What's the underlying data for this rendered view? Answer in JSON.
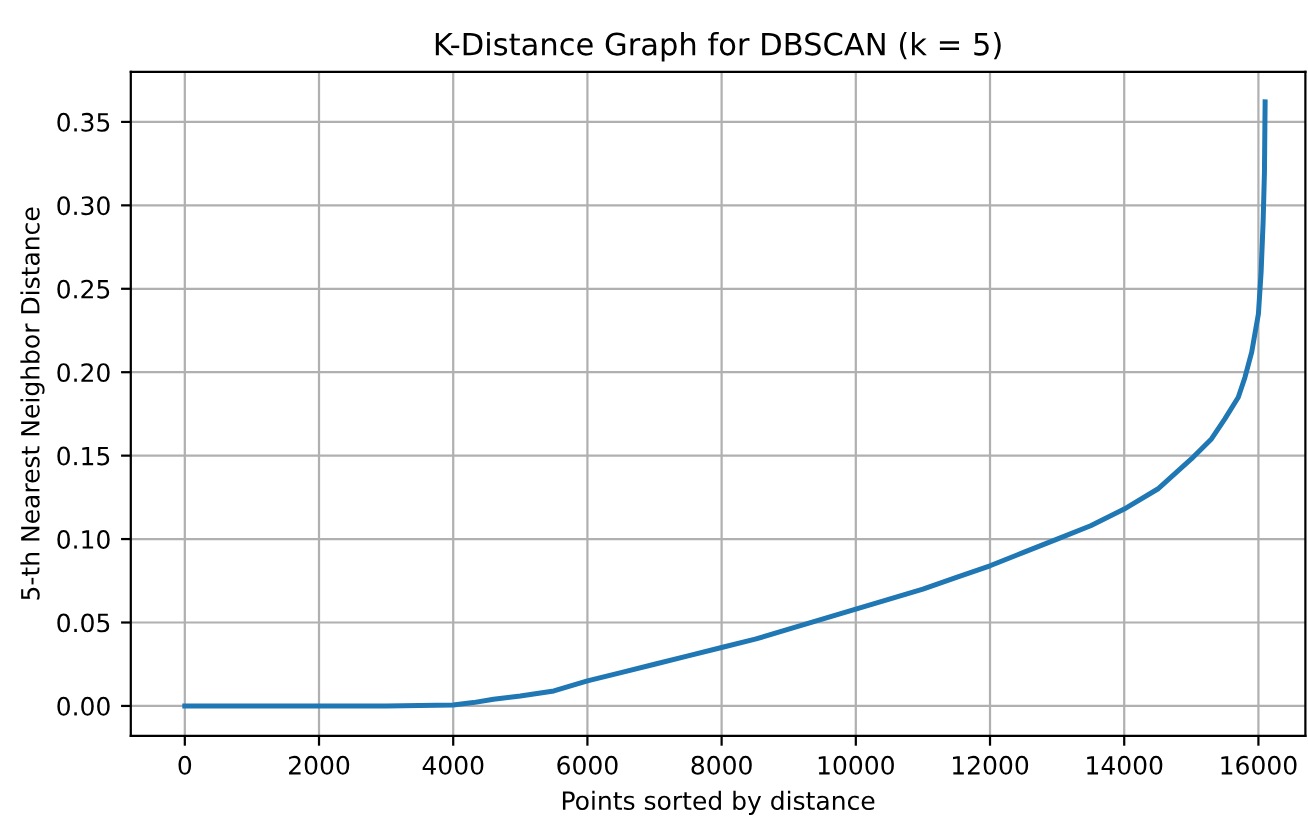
{
  "chart_data": {
    "type": "line",
    "title": "K-Distance Graph for DBSCAN (k = 5)",
    "xlabel": "Points sorted by distance",
    "ylabel": "5-th Nearest Neighbor Distance",
    "series": [
      {
        "color": "#1f77b4",
        "x": [
          0,
          1000,
          2000,
          3000,
          4000,
          4300,
          4600,
          5000,
          5500,
          6000,
          6500,
          7000,
          7500,
          8000,
          8500,
          9000,
          9500,
          10000,
          10500,
          11000,
          11500,
          12000,
          12500,
          13000,
          13500,
          14000,
          14500,
          15000,
          15300,
          15500,
          15700,
          15800,
          15900,
          16000,
          16040,
          16070,
          16090,
          16100
        ],
        "values": [
          0,
          0,
          0,
          0,
          0.0005,
          0.002,
          0.004,
          0.006,
          0.009,
          0.015,
          0.02,
          0.025,
          0.03,
          0.035,
          0.04,
          0.046,
          0.052,
          0.058,
          0.064,
          0.07,
          0.077,
          0.084,
          0.092,
          0.1,
          0.108,
          0.118,
          0.13,
          0.148,
          0.16,
          0.172,
          0.185,
          0.197,
          0.212,
          0.235,
          0.26,
          0.29,
          0.32,
          0.362
        ]
      }
    ],
    "xlim": [
      -805,
      16700
    ],
    "ylim": [
      -0.018,
      0.38
    ],
    "xticks": [
      0,
      2000,
      4000,
      6000,
      8000,
      10000,
      12000,
      14000,
      16000
    ],
    "yticks": [
      {
        "value": 0,
        "label": "0.00"
      },
      {
        "value": 0.05,
        "label": "0.05"
      },
      {
        "value": 0.1,
        "label": "0.10"
      },
      {
        "value": 0.15,
        "label": "0.15"
      },
      {
        "value": 0.2,
        "label": "0.20"
      },
      {
        "value": 0.25,
        "label": "0.25"
      },
      {
        "value": 0.3,
        "label": "0.30"
      },
      {
        "value": 0.35,
        "label": "0.35"
      }
    ],
    "grid": true,
    "line_style": "solid"
  }
}
